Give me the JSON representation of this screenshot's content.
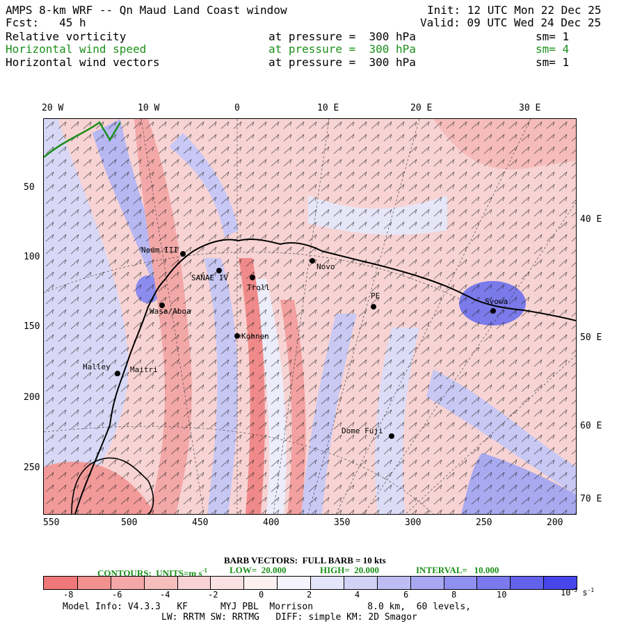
{
  "header": {
    "title": "AMPS 8-km WRF -- Qn Maud Land Coast window",
    "init": "Init: 12 UTC Mon 22 Dec 25",
    "fcst": "Fcst:   45 h",
    "valid": "Valid: 09 UTC Wed 24 Dec 25"
  },
  "fields": [
    {
      "name": "Relative vorticity",
      "level": "at pressure =  300 hPa",
      "sm": "sm= 1",
      "color": "#000000"
    },
    {
      "name": "Horizontal wind speed",
      "level": "at pressure =  300 hPa",
      "sm": "sm= 4",
      "color": "#1a8f1a"
    },
    {
      "name": "Horizontal wind vectors",
      "level": "at pressure =  300 hPa",
      "sm": "sm= 1",
      "color": "#000000"
    }
  ],
  "axes": {
    "top": [
      "20 W",
      "10 W",
      "0",
      "10 E",
      "20 E",
      "30 E"
    ],
    "left": [
      "50",
      "100",
      "150",
      "200",
      "250"
    ],
    "bottom": [
      "550",
      "500",
      "450",
      "400",
      "350",
      "300",
      "250",
      "200"
    ],
    "right": [
      "40 E",
      "50 E",
      "60 E",
      "70 E"
    ]
  },
  "stations": [
    "Neum III",
    "SANAE IV",
    "Troll",
    "Novo",
    "PE",
    "Syowa",
    "Kohnen",
    "Halley",
    "Maitri",
    "Dome Fuji",
    "Wasa/Aboa"
  ],
  "footer": {
    "barb": "BARB VECTORS:  FULL BARB = 10 kts",
    "contours_label": "CONTOURS:  UNITS=m s",
    "contours_exp": "-1",
    "low": "LOW=  20.000",
    "high": "HIGH=  20.000",
    "interval": "INTERVAL=   10.000",
    "colorbar_labels": [
      "-8",
      "-6",
      "-4",
      "-2",
      "0",
      "2",
      "4",
      "6",
      "8",
      "10"
    ],
    "units_base": "10",
    "units_exp": "-5",
    "units_suffix": "s",
    "units_suffix_exp": "-1",
    "model_info": "Model Info: V4.3.3   KF      MYJ PBL  Morrison          8.0 km,  60 levels,",
    "model_info2": "LW: RRTM SW: RRTMG   DIFF: simple KM: 2D Smagor"
  },
  "colors": {
    "colorbar": [
      "#f07878",
      "#f39090",
      "#f5a8a8",
      "#f7bebe",
      "#f9d3d3",
      "#fbe2e2",
      "#fdf0f0",
      "#f4f4fc",
      "#e4e4fa",
      "#d2d2f7",
      "#bdbdf4",
      "#a8a8f2",
      "#9090f0",
      "#7a7aee",
      "#6262ec",
      "#4646ea"
    ]
  }
}
